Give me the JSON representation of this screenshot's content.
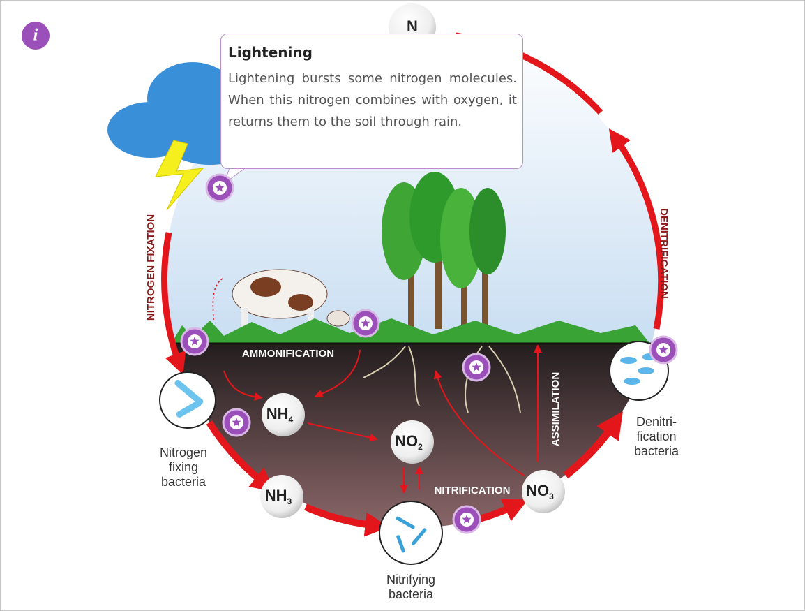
{
  "info_button": {
    "label": "i"
  },
  "tooltip": {
    "title": "Lightening",
    "body": "Lightening bursts some nitrogen molecules. When this nitrogen combines with oxygen, it returns them to the soil through rain."
  },
  "processes": {
    "nitrogen_fixation": "NITROGEN FIXATION",
    "denitrification": "DENITRIFICATION",
    "ammonification": "AMMONIFICATION",
    "nitrification": "NITRIFICATION",
    "assimilation": "ASSIMILATION"
  },
  "compounds": [
    {
      "main": "N"
    },
    {
      "main": "NH",
      "sub": "4"
    },
    {
      "main": "NO",
      "sub": "2"
    },
    {
      "main": "NH",
      "sub": "3"
    },
    {
      "main": "NO",
      "sub": "3"
    }
  ],
  "bacteria": [
    {
      "lines": [
        "Nitrogen",
        "fixing",
        "bacteria"
      ]
    },
    {
      "lines": [
        "Nitrifying",
        "bacteria"
      ]
    },
    {
      "lines": [
        "Denitri-",
        "fication",
        "bacteria"
      ]
    }
  ]
}
